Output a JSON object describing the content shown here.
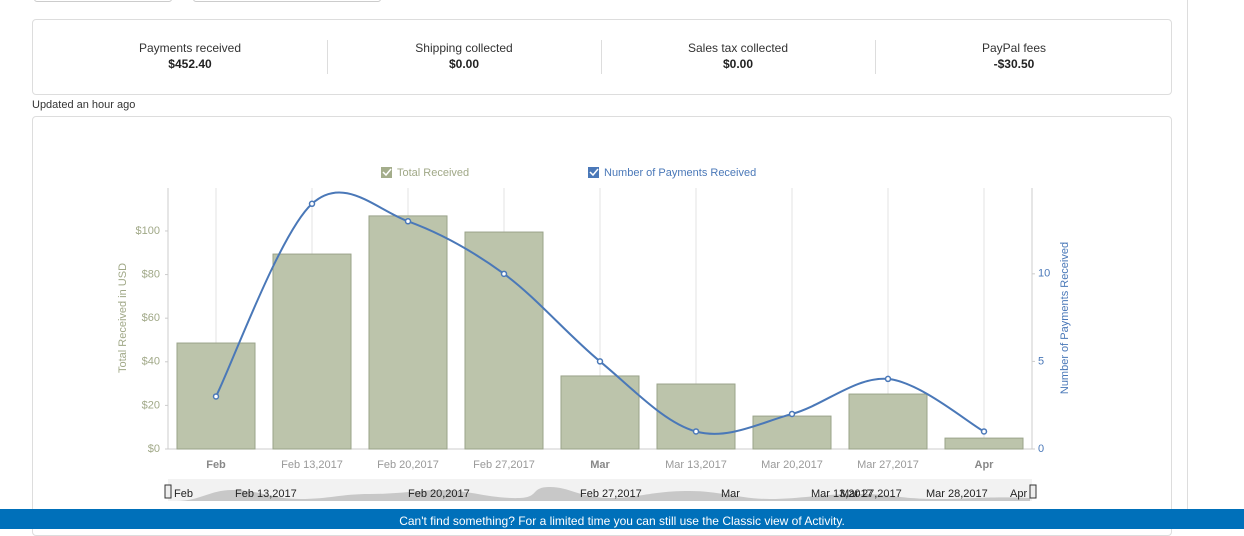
{
  "summary": [
    {
      "label": "Payments received",
      "value": "$452.40"
    },
    {
      "label": "Shipping collected",
      "value": "$0.00"
    },
    {
      "label": "Sales tax collected",
      "value": "$0.00"
    },
    {
      "label": "PayPal fees",
      "value": "-$30.50"
    }
  ],
  "updated": "Updated an hour ago",
  "chart_data": {
    "type": "bar-line",
    "categories": [
      "Feb",
      "Feb 13,2017",
      "Feb 20,2017",
      "Feb 27,2017",
      "Mar",
      "Mar 13,2017",
      "Mar 20,2017",
      "Mar 27,2017",
      "Apr"
    ],
    "bold_categories": [
      "Feb",
      "Mar",
      "Apr"
    ],
    "series": [
      {
        "name": "Total Received",
        "color": "#bcc4ab",
        "type": "bar",
        "values": [
          48.6,
          89.4,
          106.9,
          99.5,
          33.5,
          29.8,
          15.1,
          25.2,
          5
        ]
      },
      {
        "name": "Number of Payments Received",
        "color": "#4a78b8",
        "type": "line",
        "axis": "y2",
        "values": [
          3,
          14,
          13,
          10,
          5,
          1,
          2,
          4,
          1
        ]
      }
    ],
    "ylabel": "Total Received in USD",
    "y2label": "Number of Payments Received",
    "ylim": [
      0,
      119.7
    ],
    "yticks": [
      {
        "value": 0,
        "label": "$0"
      },
      {
        "value": 20,
        "label": "$20"
      },
      {
        "value": 40,
        "label": "$40"
      },
      {
        "value": 60,
        "label": "$60"
      },
      {
        "value": 80,
        "label": "$80"
      },
      {
        "value": 100,
        "label": "$100"
      }
    ],
    "y2lim": [
      0,
      14.9
    ],
    "y2ticks": [
      0,
      5,
      10
    ],
    "navigator_labels": [
      "Feb",
      "Feb 13,2017",
      "Feb 20,2017",
      "Feb 27,2017",
      "Mar",
      "Mar 13,2017",
      "Mar 27,2017",
      "Mar 28,2017",
      "Apr"
    ]
  },
  "footer": "Can't find something? For a limited time you can still use the Classic view of Activity."
}
